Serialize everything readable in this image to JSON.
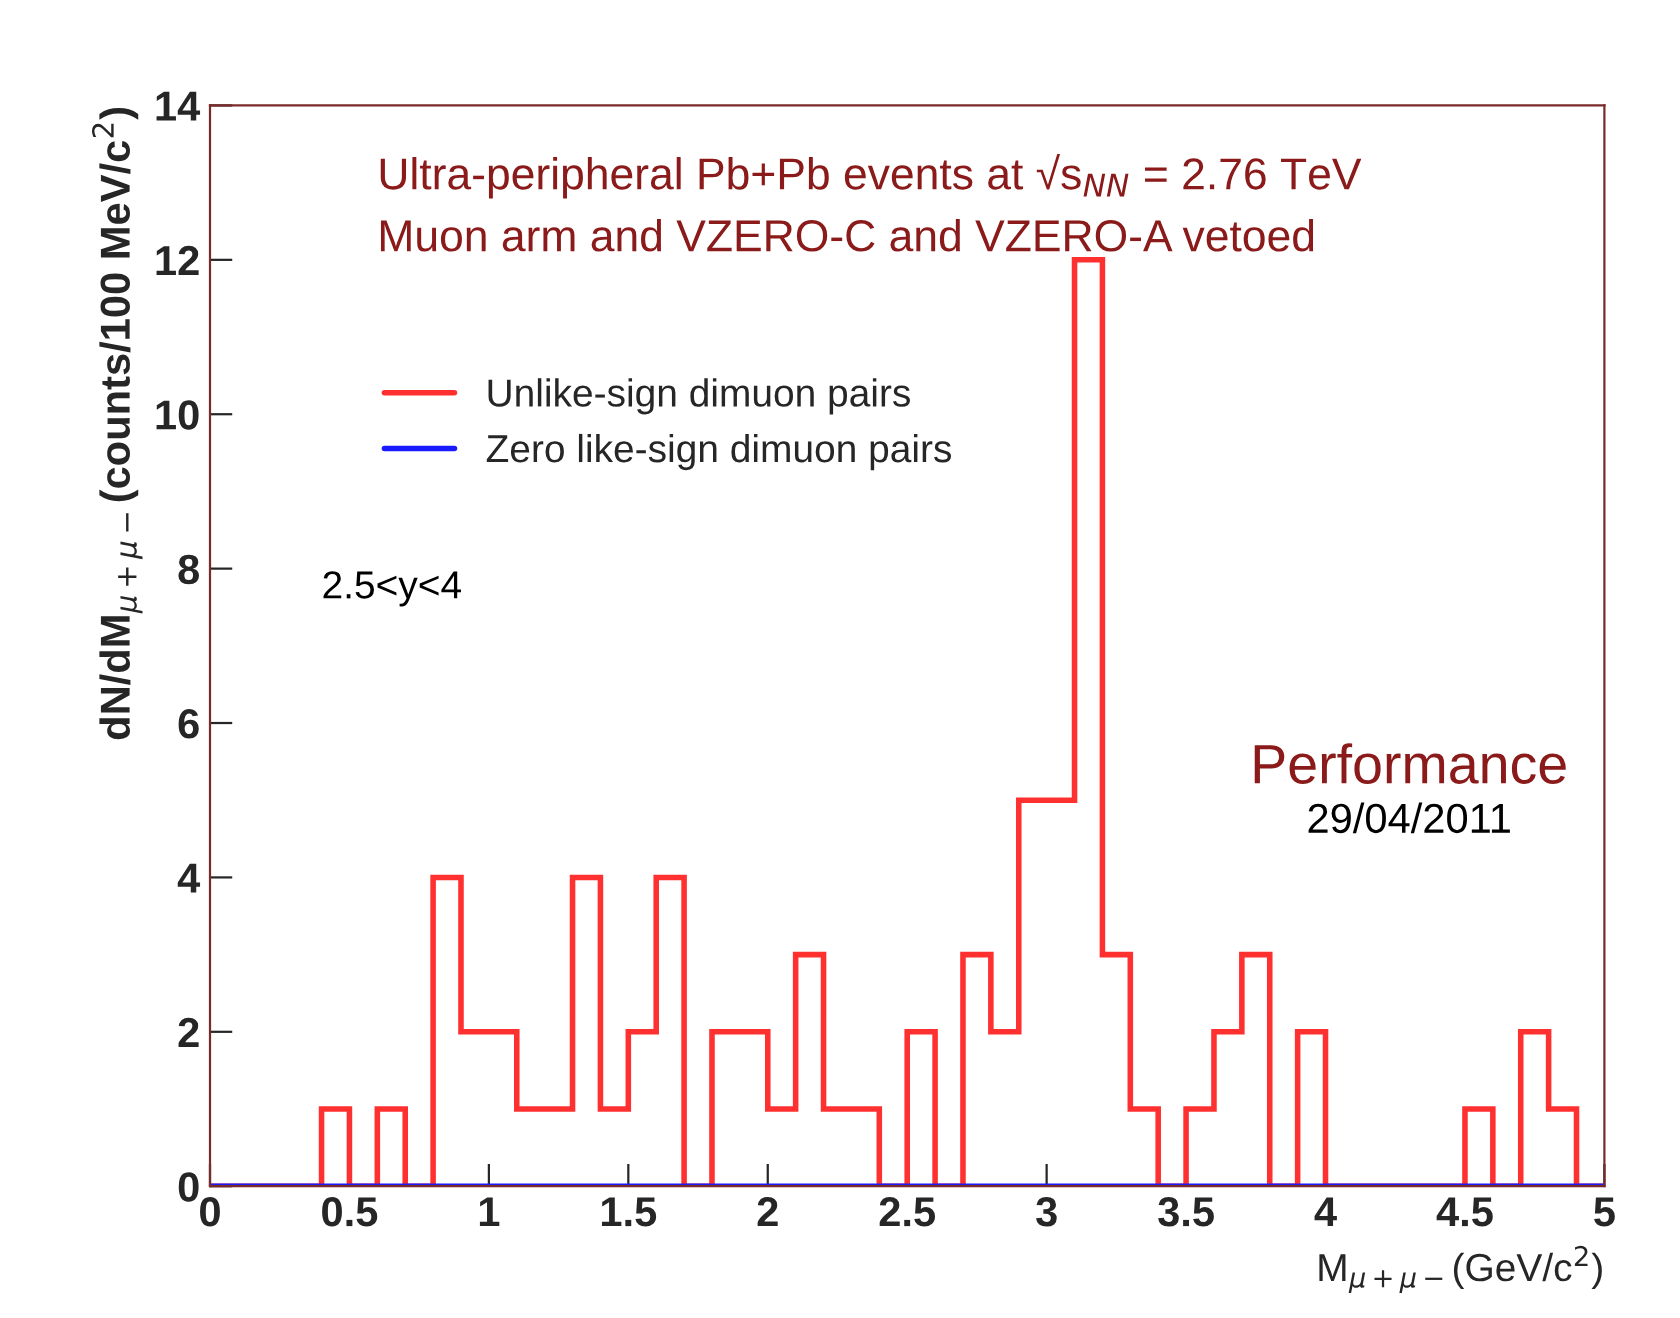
{
  "chart_data": {
    "type": "histogram",
    "xlabel": "M$_{μ+μ−}$(GeV/c$^{2}$)",
    "ylabel": "dN/dM$_{μ+μ−}$(counts/100 MeV/c$^{2}$)",
    "bins": [
      0,
      0.1,
      0.2,
      0.3,
      0.4,
      0.5,
      0.6,
      0.7,
      0.8,
      0.9,
      1,
      1.1,
      1.2,
      1.3,
      1.4,
      1.5,
      1.6,
      1.7,
      1.8,
      1.9,
      2,
      2.1,
      2.2,
      2.3,
      2.4,
      2.5,
      2.6,
      2.7,
      2.8,
      2.9,
      3,
      3.1,
      3.2,
      3.3,
      3.4,
      3.5,
      3.6,
      3.7,
      3.8,
      3.9,
      4,
      4.1,
      4.2,
      4.3,
      4.4,
      4.5,
      4.6,
      4.7,
      4.8,
      4.9,
      5
    ],
    "series": [
      {
        "name": "Unlike-sign dimuon pairs",
        "color": "#ff3030",
        "values": [
          0,
          0,
          0,
          0,
          1,
          0,
          1,
          0,
          4,
          2,
          2,
          1,
          1,
          4,
          1,
          2,
          4,
          0,
          2,
          2,
          1,
          3,
          1,
          1,
          0,
          2,
          0,
          3,
          2,
          5,
          5,
          12,
          3,
          1,
          0,
          1,
          2,
          3,
          0,
          2,
          0,
          0,
          0,
          0,
          0,
          1,
          0,
          2,
          1,
          0
        ]
      },
      {
        "name": "Zero like-sign dimuon pairs",
        "color": "#1a1aff",
        "values": [
          0,
          0,
          0,
          0,
          0,
          0,
          0,
          0,
          0,
          0,
          0,
          0,
          0,
          0,
          0,
          0,
          0,
          0,
          0,
          0,
          0,
          0,
          0,
          0,
          0,
          0,
          0,
          0,
          0,
          0,
          0,
          0,
          0,
          0,
          0,
          0,
          0,
          0,
          0,
          0,
          0,
          0,
          0,
          0,
          0,
          0,
          0,
          0,
          0,
          0
        ]
      }
    ],
    "xlim": [
      0,
      5
    ],
    "xticks": [
      0,
      0.5,
      1,
      1.5,
      2,
      2.5,
      3,
      3.5,
      4,
      4.5,
      5
    ],
    "ylim": [
      0,
      14
    ],
    "yticks": [
      0,
      2,
      4,
      6,
      8,
      10,
      12,
      14
    ],
    "grid": false,
    "legend": "top left",
    "annotations": [
      "Ultra-peripheral Pb+Pb events at √s$_{NN}$ = 2.76 TeV",
      "Muon arm and VZERO-C and VZERO-A vetoed",
      "2.5<y<4",
      "Performance",
      "29/04/2011"
    ]
  }
}
